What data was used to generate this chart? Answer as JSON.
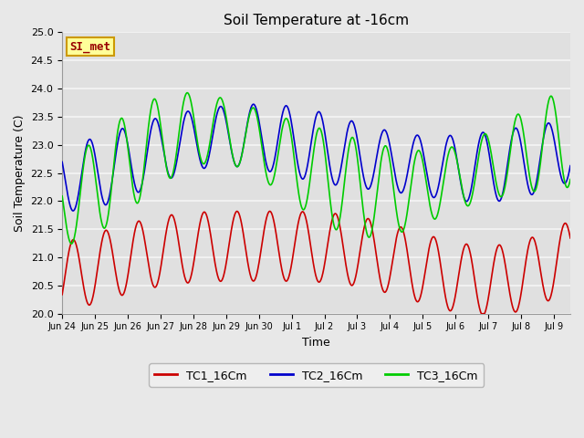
{
  "title": "Soil Temperature at -16cm",
  "xlabel": "Time",
  "ylabel": "Soil Temperature (C)",
  "ylim": [
    20.0,
    25.0
  ],
  "yticks": [
    20.0,
    20.5,
    21.0,
    21.5,
    22.0,
    22.5,
    23.0,
    23.5,
    24.0,
    24.5,
    25.0
  ],
  "fig_bg_color": "#e8e8e8",
  "plot_bg_color": "#e0e0e0",
  "grid_color": "#f5f5f5",
  "line_colors": {
    "TC1": "#cc0000",
    "TC2": "#0000cc",
    "TC3": "#00cc00"
  },
  "line_width": 1.2,
  "legend_labels": [
    "TC1_16Cm",
    "TC2_16Cm",
    "TC3_16Cm"
  ],
  "watermark_text": "SI_met",
  "watermark_fg": "#990000",
  "watermark_bg": "#ffff99",
  "watermark_border": "#cc9900",
  "tick_labels": [
    "Jun 24",
    "Jun 25",
    "Jun 26",
    "Jun 27",
    "Jun 28",
    "Jun 29",
    "Jun 30",
    "Jul 1",
    "Jul 2",
    "Jul 3",
    "Jul 4",
    "Jul 5",
    "Jul 6",
    "Jul 7",
    "Jul 8",
    "Jul 9"
  ],
  "title_fontsize": 11,
  "axis_label_fontsize": 9,
  "tick_fontsize": 8,
  "xtick_fontsize": 7
}
